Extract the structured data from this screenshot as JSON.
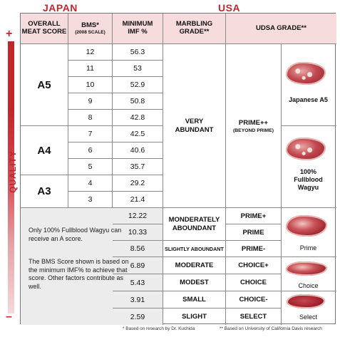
{
  "regions": {
    "japan": "JAPAN",
    "usa": "USA"
  },
  "headers": {
    "overall_line1": "OVERALL",
    "overall_line2": "MEAT SCORE",
    "bms": "BMS*",
    "bms_scale": "(2008 SCALE)",
    "imf_line1": "MINIMUM",
    "imf_line2": "IMF %",
    "marbling_line1": "MARBLING",
    "marbling_line2": "GRADE**",
    "usda": "UDSA GRADE**"
  },
  "japan_rows": [
    {
      "bms": "12",
      "imf": "56.3"
    },
    {
      "bms": "11",
      "imf": "53"
    },
    {
      "bms": "10",
      "imf": "52.9"
    },
    {
      "bms": "9",
      "imf": "50.8"
    },
    {
      "bms": "8",
      "imf": "42.8"
    },
    {
      "bms": "7",
      "imf": "42.5"
    },
    {
      "bms": "6",
      "imf": "40.6"
    },
    {
      "bms": "5",
      "imf": "35.7"
    },
    {
      "bms": "4",
      "imf": "29.2"
    },
    {
      "bms": "3",
      "imf": "21.4"
    }
  ],
  "meat_scores": [
    "A5",
    "A4",
    "A3"
  ],
  "very_abundant": {
    "line1": "VERY",
    "line2": "ABUNDANT"
  },
  "prime_pp": {
    "line1": "PRIME++",
    "line2": "(BEYOND PRIME)"
  },
  "usa_rows": [
    {
      "imf": "12.22",
      "usda": "PRIME+"
    },
    {
      "imf": "10.33",
      "usda": "PRIME"
    },
    {
      "imf": "8.56",
      "usda": "PRIME-"
    },
    {
      "imf": "6.89",
      "usda": "CHOICE+"
    },
    {
      "imf": "5.43",
      "usda": "CHOICE"
    },
    {
      "imf": "3.91",
      "usda": "CHOICE-"
    },
    {
      "imf": "2.59",
      "usda": "SELECT"
    }
  ],
  "marbling": {
    "mod_line1": "MONDERATELY",
    "mod_line2": "ABOUNDANT",
    "slightly": "SLIGHTLY ABOUNDANT",
    "moderate": "MODERATE",
    "modest": "MODEST",
    "small": "SMALL",
    "slight": "SLIGHT"
  },
  "steaks": {
    "japanese_a5": "Japanese A5",
    "fullblood_line1": "100%",
    "fullblood_line2": "Fullblood",
    "fullblood_line3": "Wagyu",
    "prime": "Prime",
    "choice": "Choice",
    "select": "Select"
  },
  "notes": {
    "note1": "Only 100% Fullblood Wagyu can receive an A score.",
    "note2": "The BMS Score shown is based on the minimum IMF% to achieve that score. Other factors contribute as well."
  },
  "quality": {
    "label": "QUALITY",
    "plus": "+",
    "minus": "–"
  },
  "footnotes": {
    "kuchida": "* Based on research by Dr. Kuchida",
    "davis": "** Based on University of California Davis research"
  }
}
